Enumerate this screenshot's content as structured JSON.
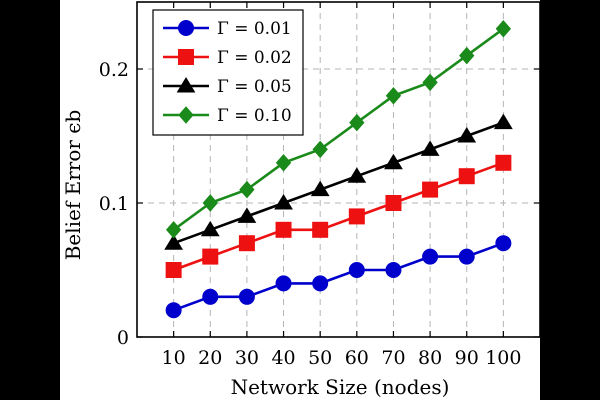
{
  "chart_data": {
    "type": "line",
    "xlabel": "Network Size (nodes)",
    "ylabel": "Belief Error ϵb",
    "x": [
      10,
      20,
      30,
      40,
      50,
      60,
      70,
      80,
      90,
      100
    ],
    "x_tick_labels": [
      "10",
      "20",
      "30",
      "40",
      "50",
      "60",
      "70",
      "80",
      "90",
      "100"
    ],
    "y_ticks": [
      0,
      0.1,
      0.2
    ],
    "y_tick_labels": [
      "0",
      "0.1",
      "0.2"
    ],
    "xlim": [
      0,
      110
    ],
    "ylim": [
      0,
      0.25
    ],
    "grid": true,
    "legend_position": "top-left",
    "series": [
      {
        "name": "Γ = 0.01",
        "color": "#0000cc",
        "marker": "circle",
        "values": [
          0.02,
          0.03,
          0.03,
          0.04,
          0.04,
          0.05,
          0.05,
          0.06,
          0.06,
          0.07
        ]
      },
      {
        "name": "Γ = 0.02",
        "color": "#ee1111",
        "marker": "square",
        "values": [
          0.05,
          0.06,
          0.07,
          0.08,
          0.08,
          0.09,
          0.1,
          0.11,
          0.12,
          0.13
        ]
      },
      {
        "name": "Γ = 0.05",
        "color": "#000000",
        "marker": "triangle",
        "values": [
          0.07,
          0.08,
          0.09,
          0.1,
          0.11,
          0.12,
          0.13,
          0.14,
          0.15,
          0.16
        ]
      },
      {
        "name": "Γ = 0.10",
        "color": "#1a8a1a",
        "marker": "diamond",
        "values": [
          0.08,
          0.1,
          0.11,
          0.13,
          0.14,
          0.16,
          0.18,
          0.19,
          0.21,
          0.23
        ]
      }
    ]
  }
}
